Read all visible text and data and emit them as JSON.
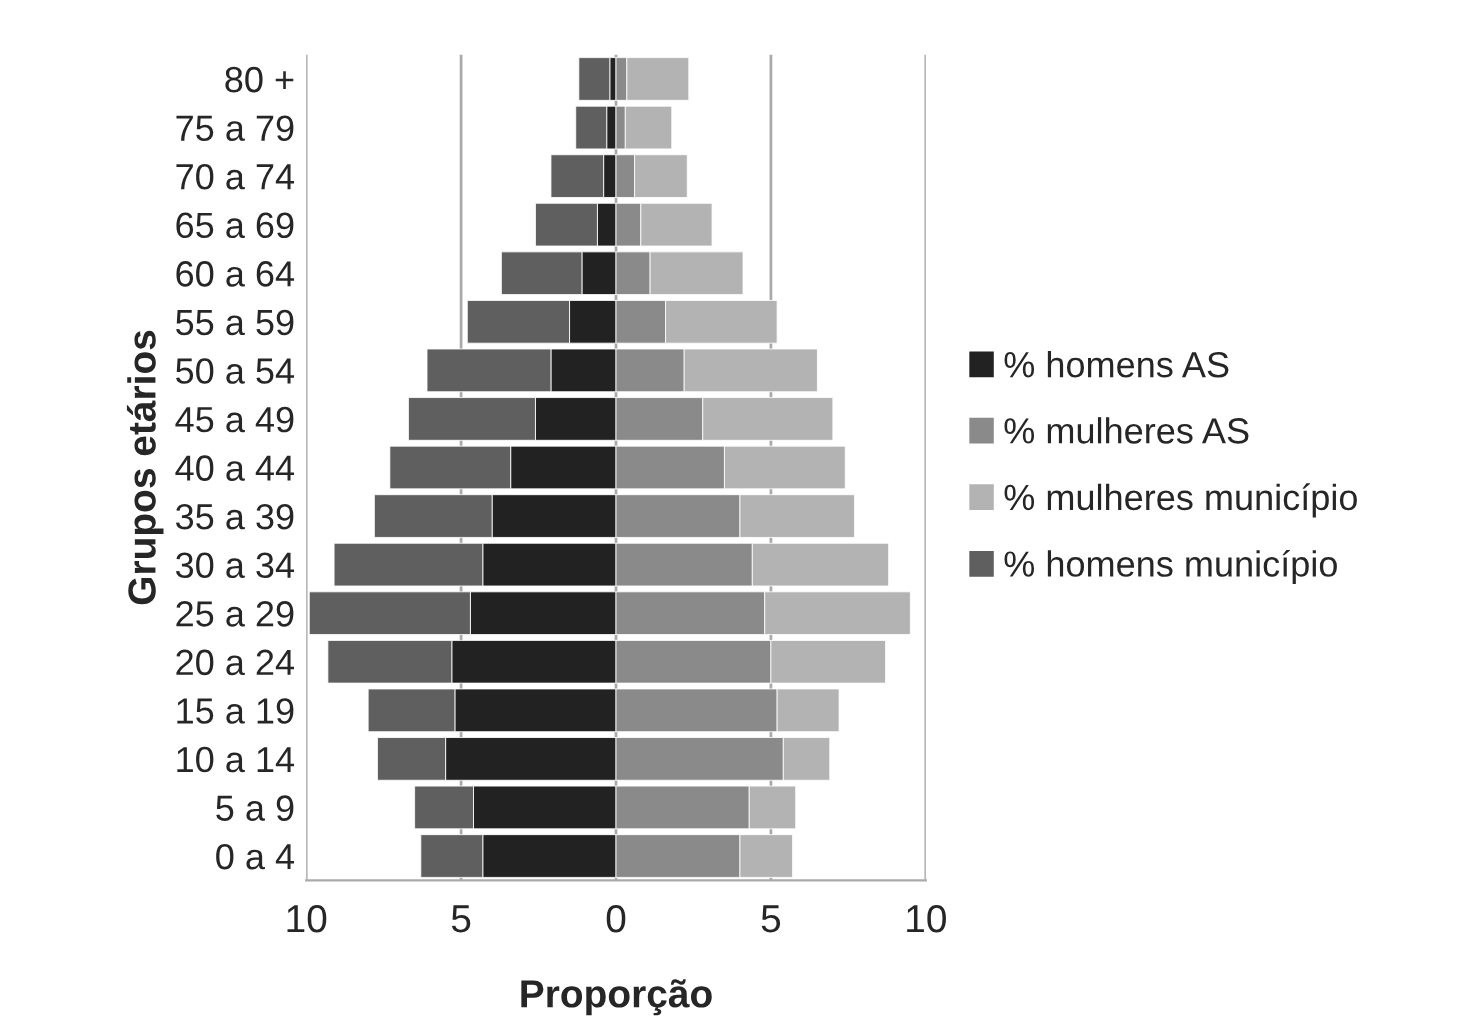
{
  "chart_data": {
    "type": "bar",
    "orientation": "horizontal",
    "stacked": true,
    "xlabel": "Proporção",
    "ylabel": "Grupos etários",
    "categories": [
      "80 +",
      "75 a 79",
      "70 a 74",
      "65 a 69",
      "60 a 64",
      "55 a 59",
      "50 a 54",
      "45 a 49",
      "40 a 44",
      "35 a 39",
      "30 a 34",
      "25 a 29",
      "20 a 24",
      "15 a 19",
      "10 a 14",
      "5 a 9",
      "0 a 4"
    ],
    "series": [
      {
        "name": "% homens AS",
        "color": "#222222",
        "values": [
          -0.2,
          -0.3,
          -0.4,
          -0.6,
          -1.1,
          -1.5,
          -2.1,
          -2.6,
          -3.4,
          -4.0,
          -4.3,
          -4.7,
          -5.3,
          -5.2,
          -5.5,
          -4.6,
          -4.3
        ]
      },
      {
        "name": "% mulheres AS",
        "color": "#8a8a8a",
        "values": [
          0.35,
          0.3,
          0.6,
          0.8,
          1.1,
          1.6,
          2.2,
          2.8,
          3.5,
          4.0,
          4.4,
          4.8,
          5.0,
          5.2,
          5.4,
          4.3,
          4.0
        ]
      },
      {
        "name": "% mulheres município",
        "color": "#b3b3b3",
        "values": [
          2.0,
          1.5,
          1.7,
          2.3,
          3.0,
          3.6,
          4.3,
          4.2,
          3.9,
          3.7,
          4.4,
          4.7,
          3.7,
          2.0,
          1.5,
          1.5,
          1.7
        ]
      },
      {
        "name": "% homens município",
        "color": "#5f5f5f",
        "values": [
          -1.0,
          -1.0,
          -1.7,
          -2.0,
          -2.6,
          -3.3,
          -4.0,
          -4.1,
          -3.9,
          -3.8,
          -4.8,
          -5.2,
          -4.0,
          -2.8,
          -2.2,
          -1.9,
          -2.0
        ]
      }
    ],
    "xlim": [
      -10,
      10
    ],
    "xticks": [
      {
        "value": -10,
        "label": "10"
      },
      {
        "value": -5,
        "label": "5"
      },
      0,
      5,
      10
    ],
    "grid": "x",
    "legend": "right"
  }
}
